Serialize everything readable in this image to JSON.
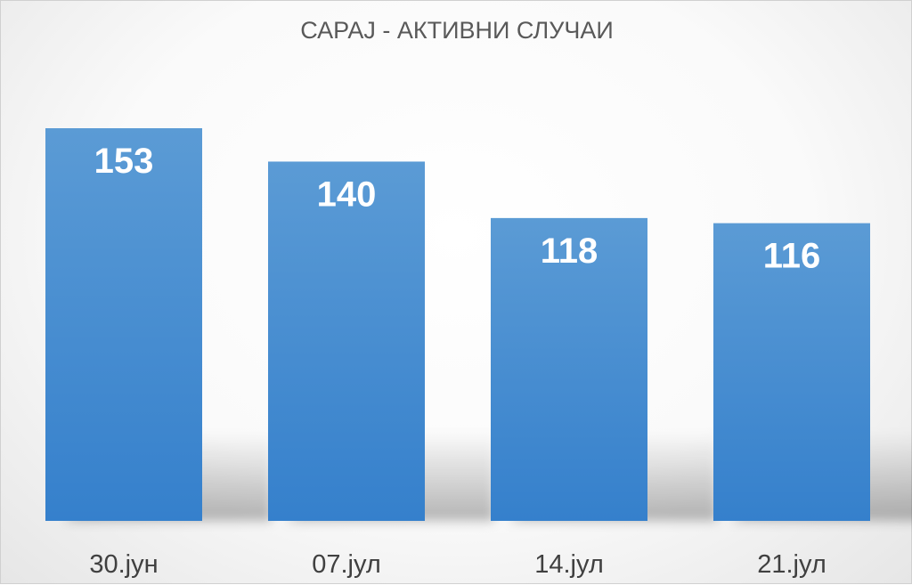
{
  "chart_data": {
    "type": "bar",
    "title": "САРАЈ - АКТИВНИ СЛУЧАИ",
    "categories": [
      "30.јун",
      "07.јул",
      "14.јул",
      "21.јул"
    ],
    "values": [
      153,
      140,
      118,
      116
    ],
    "xlabel": "",
    "ylabel": "",
    "ylim": [
      0,
      170
    ],
    "grid": false,
    "legend": "none",
    "data_labels": true,
    "colors": {
      "bar_top": "#5b9bd5",
      "bar_bottom": "#3580cc",
      "label": "#ffffff",
      "title": "#595959",
      "ticks": "#404040"
    }
  }
}
